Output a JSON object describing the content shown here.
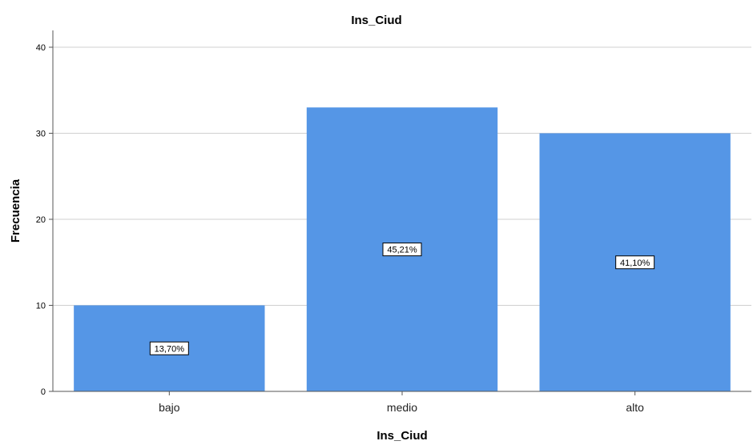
{
  "chart_data": {
    "type": "bar",
    "title": "Ins_Ciud",
    "xlabel": "Ins_Ciud",
    "ylabel": "Frecuencia",
    "categories": [
      "bajo",
      "medio",
      "alto"
    ],
    "values": [
      10,
      33,
      30
    ],
    "data_labels": [
      "13,70%",
      "45,21%",
      "41,10%"
    ],
    "ylim": [
      0,
      42
    ],
    "yticks": [
      0,
      10,
      20,
      30,
      40
    ],
    "grid": true,
    "bar_color": "#5596e6"
  }
}
